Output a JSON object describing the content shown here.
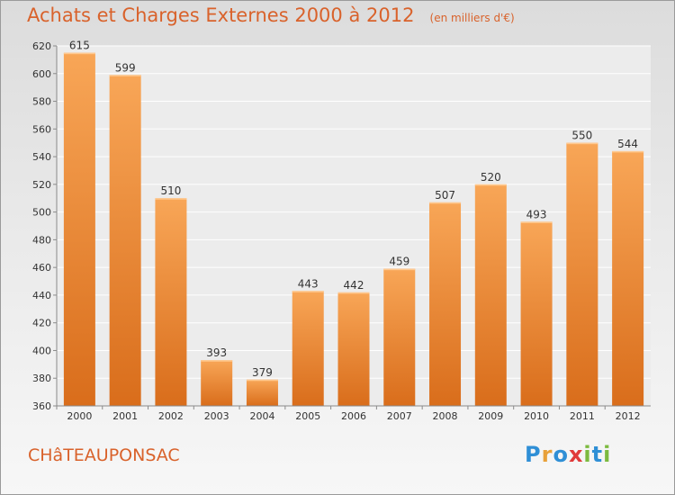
{
  "title": "Achats et Charges Externes 2000 à 2012",
  "unit": "(en milliers d'€)",
  "commune": "CHâTEAUPONSAC",
  "brand": {
    "letters": [
      "P",
      "r",
      "o",
      "x",
      "i",
      "t",
      "i"
    ],
    "colors": [
      "#2f8fd6",
      "#e8a13a",
      "#2f8fd6",
      "#e03a3a",
      "#7cba3f",
      "#2f8fd6",
      "#7cba3f"
    ]
  },
  "colors": {
    "accent": "#d9622b",
    "bar_top": "#f8a657",
    "bar_bottom": "#d96d1b",
    "grid": "#ffffff",
    "axis": "#8a8a8a"
  },
  "chart_data": {
    "type": "bar",
    "title": "Achats et Charges Externes 2000 à 2012",
    "categories": [
      "2000",
      "2001",
      "2002",
      "2003",
      "2004",
      "2005",
      "2006",
      "2007",
      "2008",
      "2009",
      "2010",
      "2011",
      "2012"
    ],
    "values": [
      615,
      599,
      510,
      393,
      379,
      443,
      442,
      459,
      507,
      520,
      493,
      550,
      544
    ],
    "ylim": [
      360,
      620
    ],
    "yticks": [
      360,
      380,
      400,
      420,
      440,
      460,
      480,
      500,
      520,
      540,
      560,
      580,
      600,
      620
    ],
    "grid": true,
    "legend": "none"
  }
}
